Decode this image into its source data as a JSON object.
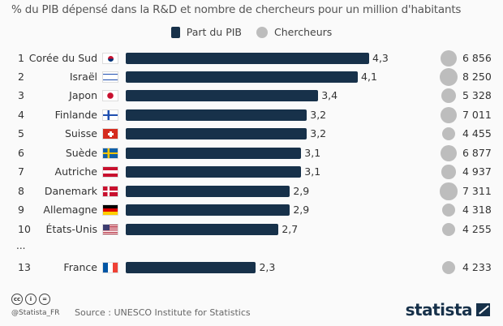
{
  "chart_data": {
    "type": "bar",
    "title": "% du PIB dépensé dans la R&D et nombre de chercheurs pour un million d'habitants",
    "legend": {
      "position": "top-center",
      "entries": [
        "Part du PIB",
        "Chercheurs"
      ]
    },
    "colors": {
      "bar": "#17314a",
      "bubble": "#bdbdbd"
    },
    "ellipsis": "...",
    "rows": [
      {
        "rank": "1",
        "country": "Corée du Sud",
        "flag": "kr",
        "pib": 4.3,
        "pib_label": "4,3",
        "chercheurs": 6856,
        "chercheurs_label": "6 856"
      },
      {
        "rank": "2",
        "country": "Israël",
        "flag": "il",
        "pib": 4.1,
        "pib_label": "4,1",
        "chercheurs": 8250,
        "chercheurs_label": "8 250"
      },
      {
        "rank": "3",
        "country": "Japon",
        "flag": "jp",
        "pib": 3.4,
        "pib_label": "3,4",
        "chercheurs": 5328,
        "chercheurs_label": "5 328"
      },
      {
        "rank": "4",
        "country": "Finlande",
        "flag": "fi",
        "pib": 3.2,
        "pib_label": "3,2",
        "chercheurs": 7011,
        "chercheurs_label": "7 011"
      },
      {
        "rank": "5",
        "country": "Suisse",
        "flag": "ch",
        "pib": 3.2,
        "pib_label": "3,2",
        "chercheurs": 4455,
        "chercheurs_label": "4 455"
      },
      {
        "rank": "6",
        "country": "Suède",
        "flag": "se",
        "pib": 3.1,
        "pib_label": "3,1",
        "chercheurs": 6877,
        "chercheurs_label": "6 877"
      },
      {
        "rank": "7",
        "country": "Autriche",
        "flag": "at",
        "pib": 3.1,
        "pib_label": "3,1",
        "chercheurs": 4937,
        "chercheurs_label": "4 937"
      },
      {
        "rank": "8",
        "country": "Danemark",
        "flag": "dk",
        "pib": 2.9,
        "pib_label": "2,9",
        "chercheurs": 7311,
        "chercheurs_label": "7 311"
      },
      {
        "rank": "9",
        "country": "Allemagne",
        "flag": "de",
        "pib": 2.9,
        "pib_label": "2,9",
        "chercheurs": 4318,
        "chercheurs_label": "4 318"
      },
      {
        "rank": "10",
        "country": "États-Unis",
        "flag": "us",
        "pib": 2.7,
        "pib_label": "2,7",
        "chercheurs": 4255,
        "chercheurs_label": "4 255"
      },
      {
        "rank": "13",
        "country": "France",
        "flag": "fr",
        "pib": 2.3,
        "pib_label": "2,3",
        "chercheurs": 4233,
        "chercheurs_label": "4 233"
      }
    ]
  },
  "footer": {
    "license_icons": [
      "cc",
      "by",
      "nd"
    ],
    "handle": "@Statista_FR",
    "source": "Source : UNESCO Institute for Statistics",
    "logo": "statista"
  }
}
